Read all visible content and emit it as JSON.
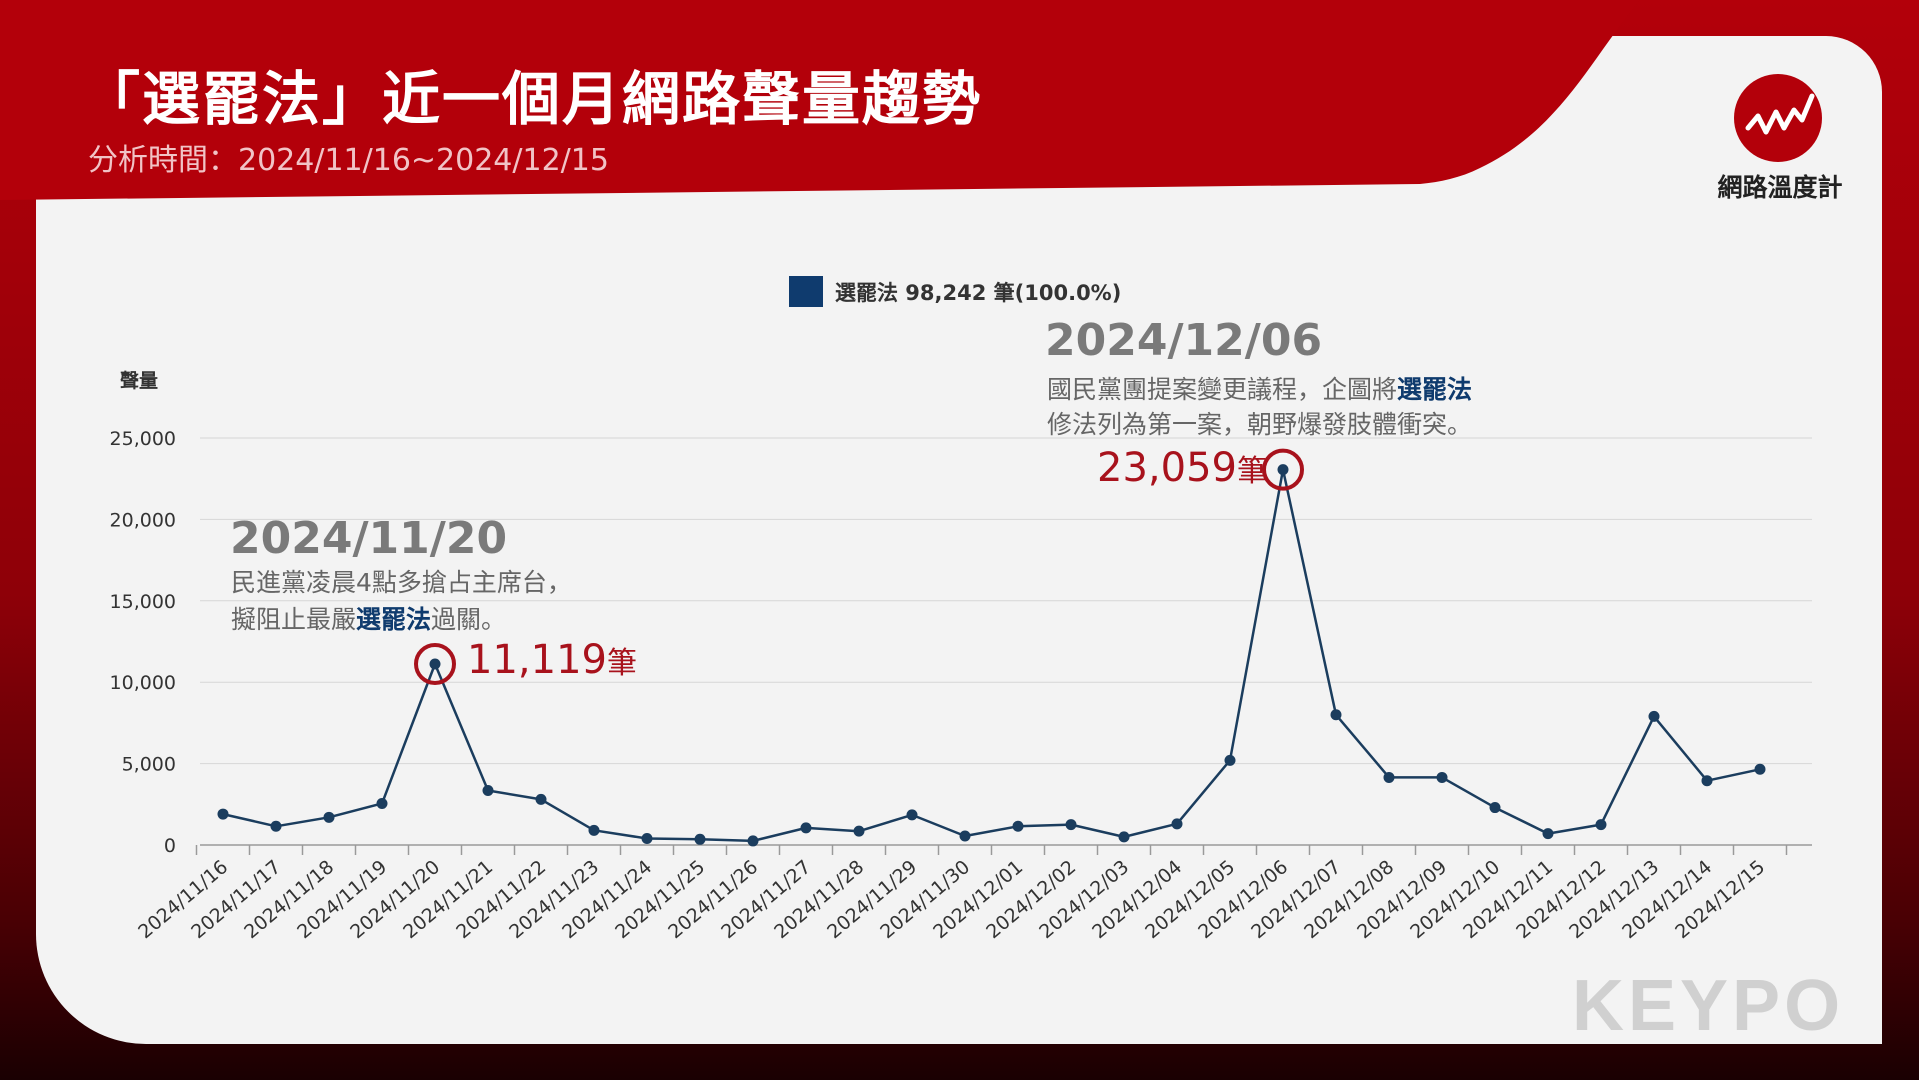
{
  "header": {
    "title": "「選罷法」近一個月網路聲量趨勢",
    "subtitle": "分析時間：2024/11/16~2024/12/15"
  },
  "brand": {
    "name": "網路溫度計",
    "watermark": "KEYPO"
  },
  "colors": {
    "accent_red": "#a8121c",
    "header_red": "#b3000a",
    "series_blue": "#1b3d5e"
  },
  "chart_data": {
    "type": "line",
    "ylabel": "聲量",
    "ylim": [
      0,
      25000
    ],
    "yticks": [
      "0",
      "5,000",
      "10,000",
      "15,000",
      "20,000",
      "25,000"
    ],
    "grid": true,
    "legend": {
      "placement": "top-center",
      "label": "選罷法 98,242 筆(100.0%)"
    },
    "categories": [
      "2024/11/16",
      "2024/11/17",
      "2024/11/18",
      "2024/11/19",
      "2024/11/20",
      "2024/11/21",
      "2024/11/22",
      "2024/11/23",
      "2024/11/24",
      "2024/11/25",
      "2024/11/26",
      "2024/11/27",
      "2024/11/28",
      "2024/11/29",
      "2024/11/30",
      "2024/12/01",
      "2024/12/02",
      "2024/12/03",
      "2024/12/04",
      "2024/12/05",
      "2024/12/06",
      "2024/12/07",
      "2024/12/08",
      "2024/12/09",
      "2024/12/10",
      "2024/12/11",
      "2024/12/12",
      "2024/12/13",
      "2024/12/14",
      "2024/12/15"
    ],
    "series": [
      {
        "name": "選罷法",
        "values": [
          1900,
          1150,
          1700,
          2550,
          11119,
          3350,
          2800,
          900,
          400,
          350,
          250,
          1050,
          850,
          1850,
          550,
          1150,
          1250,
          500,
          1300,
          5200,
          23059,
          8000,
          4150,
          4150,
          2300,
          700,
          1250,
          7900,
          3950,
          4650
        ]
      }
    ],
    "annotations": [
      {
        "index": 4,
        "date": "2024/11/20",
        "line1": "民進黨凌晨4點多搶占主席台，",
        "line2_pre": "擬阻止最嚴",
        "line2_hi": "選罷法",
        "line2_post": "過關。",
        "value": "11,119",
        "unit": "筆"
      },
      {
        "index": 20,
        "date": "2024/12/06",
        "line1_pre": "國民黨團提案變更議程，企圖將",
        "line1_hi": "選罷法",
        "line2": "修法列為第一案，朝野爆發肢體衝突。",
        "value": "23,059",
        "unit": "筆"
      }
    ]
  }
}
